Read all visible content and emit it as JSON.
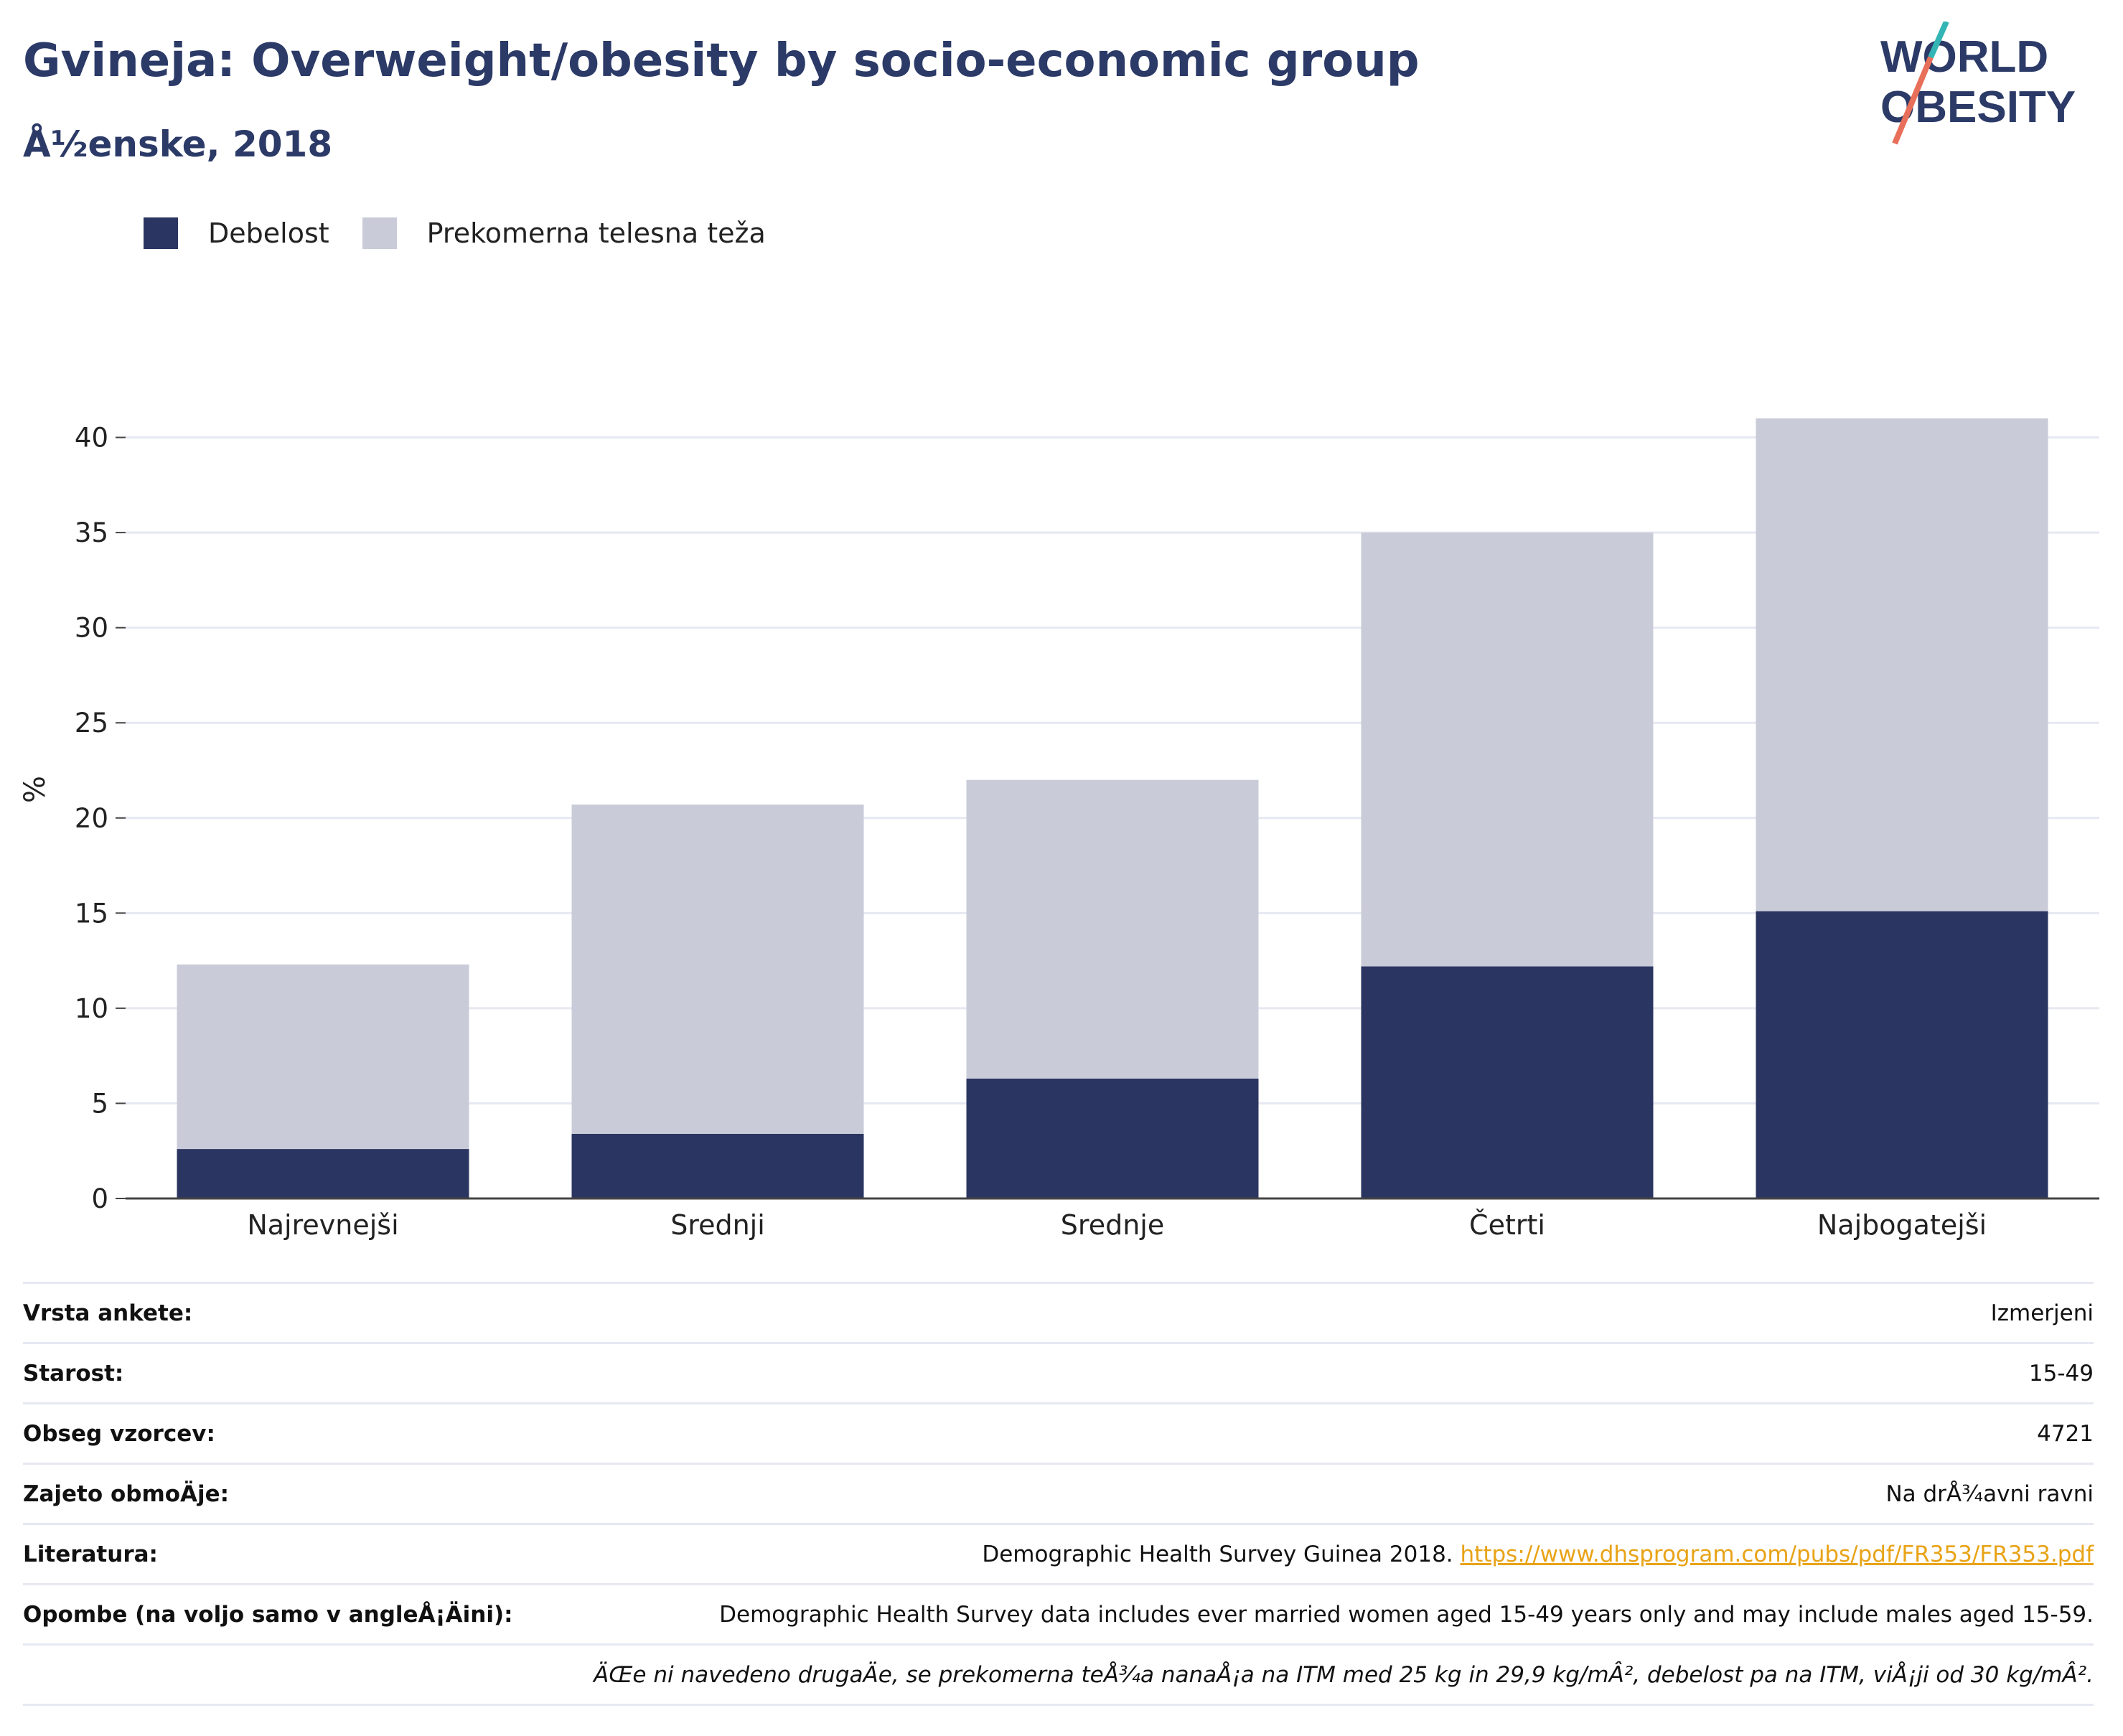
{
  "header": {
    "title": "Gvineja: Overweight/obesity by socio-economic group",
    "subtitle": "Å½enske, 2018"
  },
  "logo": {
    "line1": "WORLD",
    "line2": "OBESITY"
  },
  "colors": {
    "obesity": "#2b3561",
    "overweight": "#c9ccd8",
    "title": "#2b3a67",
    "link": "#e8a317",
    "grid": "#e6e8f2"
  },
  "legend": [
    {
      "label": "Debelost",
      "color": "#2b3561"
    },
    {
      "label": "Prekomerna telesna teža",
      "color": "#c9ccd8"
    }
  ],
  "chart_data": {
    "type": "bar",
    "stacked": true,
    "categories": [
      "Najrevnejši",
      "Srednji",
      "Srednje",
      "Četrti",
      "Najbogatejši"
    ],
    "series": [
      {
        "name": "Debelost",
        "values": [
          2.6,
          3.4,
          6.3,
          12.2,
          15.1
        ]
      },
      {
        "name": "Prekomerna telesna teža",
        "values": [
          9.7,
          17.3,
          15.7,
          22.8,
          25.9
        ]
      }
    ],
    "totals": [
      12.3,
      20.7,
      22.0,
      35.0,
      41.0
    ],
    "ylabel": "%",
    "ylim": [
      0,
      43
    ],
    "yticks": [
      0,
      5,
      10,
      15,
      20,
      25,
      30,
      35,
      40
    ],
    "grid": true,
    "legend_position": "top-left"
  },
  "meta": [
    {
      "label": "Vrsta ankete:",
      "value": "Izmerjeni"
    },
    {
      "label": "Starost:",
      "value": "15-49"
    },
    {
      "label": "Obseg vzorcev:",
      "value": "4721"
    },
    {
      "label": "Zajeto obmoÄje:",
      "value": "Na drÅ¾avni ravni"
    },
    {
      "label": "Literatura:",
      "value": "Demographic Health Survey Guinea 2018.",
      "link": "https://www.dhsprogram.com/pubs/pdf/FR353/FR353.pdf"
    },
    {
      "label": "Opombe (na voljo samo v angleÅ¡Äini):",
      "value": "Demographic Health Survey data includes ever married women aged 15-49 years only and may include males aged 15-59."
    }
  ],
  "footnote": "ÄŒe ni navedeno drugaÄe, se prekomerna teÅ¾a nanaÅ¡a na ITM med 25 kg in 29,9 kg/mÂ², debelost pa na ITM, viÅ¡ji od 30 kg/mÂ²."
}
